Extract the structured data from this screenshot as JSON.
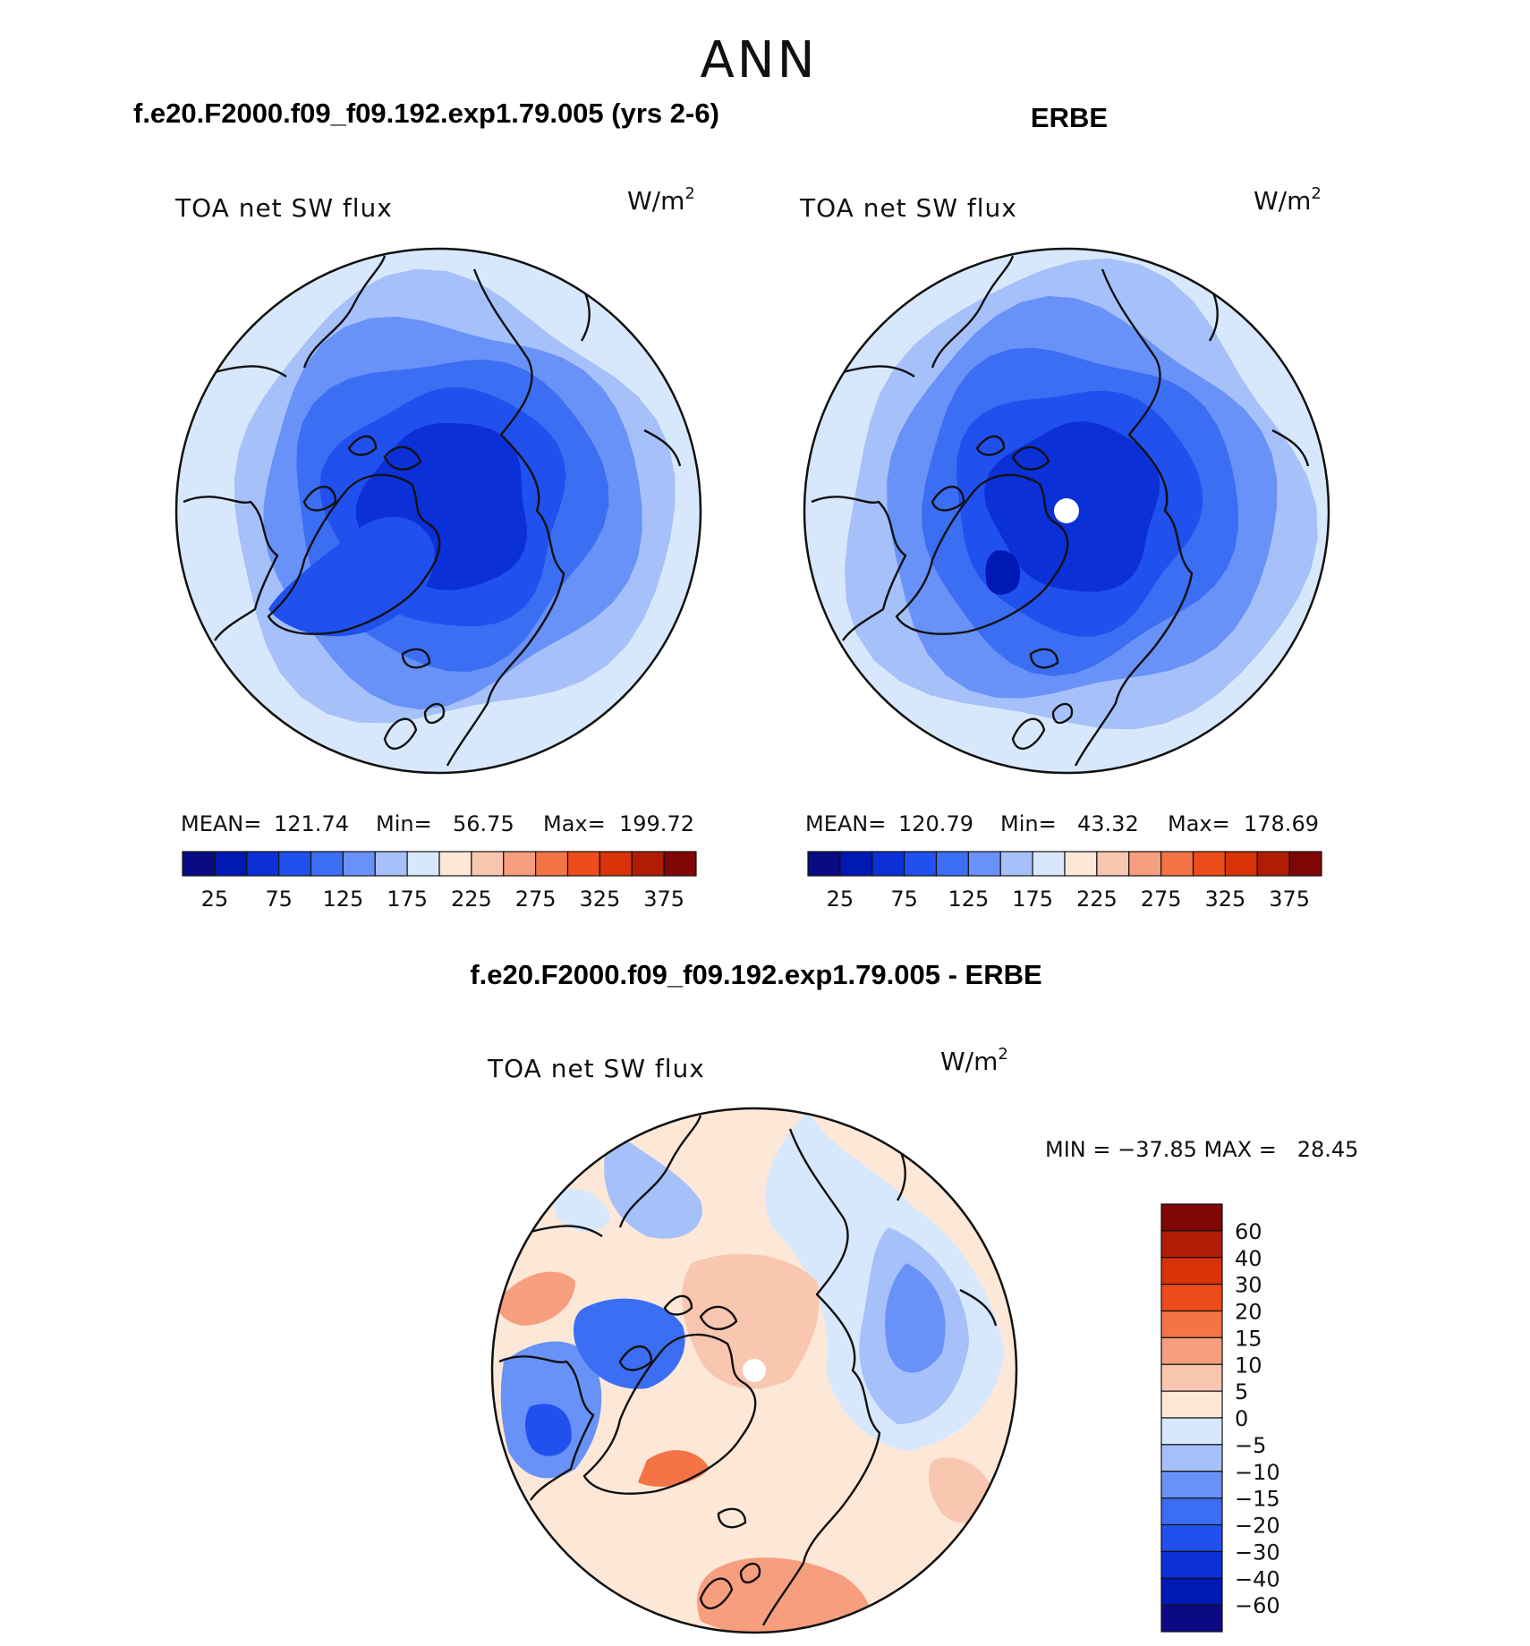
{
  "figure": {
    "season": "ANN",
    "left_title": "f.e20.F2000.f09_f09.192.exp1.79.005 (yrs 2-6)",
    "right_title": "ERBE",
    "diff_title": "f.e20.F2000.f09_f09.192.exp1.79.005 - ERBE"
  },
  "chart_data": [
    {
      "type": "heatmap",
      "projection": "north-polar-stereographic",
      "title": "f.e20.F2000.f09_f09.192.exp1.79.005 (yrs 2-6)",
      "variable": "TOA net SW flux",
      "units": "W/m",
      "units_exp": "2",
      "stats": {
        "mean_label": "MEAN=",
        "mean": "121.74",
        "min_label": "Min=",
        "min": "56.75",
        "max_label": "Max=",
        "max": "199.72"
      },
      "levels": [
        "25",
        "75",
        "125",
        "175",
        "225",
        "275",
        "325",
        "375"
      ],
      "palette": [
        "#0a0a84",
        "#0018b4",
        "#0c30d8",
        "#2050ee",
        "#3c6ef4",
        "#6892f8",
        "#a6c0fa",
        "#d8e8fc",
        "#fde8d8",
        "#f9c6b0",
        "#f79e7e",
        "#f47446",
        "#ee4c1a",
        "#d83208",
        "#b01c04",
        "#800606"
      ],
      "rings": [
        {
          "value": 192,
          "color": "#d8e8fc"
        },
        {
          "value": 172,
          "color": "#a6c0fa"
        },
        {
          "value": 150,
          "color": "#6892f8"
        },
        {
          "value": 125,
          "color": "#3c6ef4"
        },
        {
          "value": 100,
          "color": "#2050ee"
        },
        {
          "value": 75,
          "color": "#0c30d8"
        }
      ]
    },
    {
      "type": "heatmap",
      "projection": "north-polar-stereographic",
      "title": "ERBE",
      "variable": "TOA net SW flux",
      "units": "W/m",
      "units_exp": "2",
      "stats": {
        "mean_label": "MEAN=",
        "mean": "120.79",
        "min_label": "Min=",
        "min": "43.32",
        "max_label": "Max=",
        "max": "178.69"
      },
      "levels": [
        "25",
        "75",
        "125",
        "175",
        "225",
        "275",
        "325",
        "375"
      ],
      "palette": [
        "#0a0a84",
        "#0018b4",
        "#0c30d8",
        "#2050ee",
        "#3c6ef4",
        "#6892f8",
        "#a6c0fa",
        "#d8e8fc",
        "#fde8d8",
        "#f9c6b0",
        "#f79e7e",
        "#f47446",
        "#ee4c1a",
        "#d83208",
        "#b01c04",
        "#800606"
      ],
      "rings": [
        {
          "value": 175,
          "color": "#a6c0fa"
        },
        {
          "value": 150,
          "color": "#6892f8"
        },
        {
          "value": 125,
          "color": "#3c6ef4"
        },
        {
          "value": 100,
          "color": "#2050ee"
        },
        {
          "value": 75,
          "color": "#0c30d8"
        }
      ]
    },
    {
      "type": "heatmap",
      "projection": "north-polar-stereographic",
      "title": "f.e20.F2000.f09_f09.192.exp1.79.005 - ERBE",
      "variable": "TOA net SW flux",
      "units": "W/m",
      "units_exp": "2",
      "stats": {
        "text": "MIN = −37.85 MAX =   28.45",
        "min": -37.85,
        "max": 28.45
      },
      "levels": [
        "60",
        "40",
        "30",
        "20",
        "15",
        "10",
        "5",
        "0",
        "−5",
        "−10",
        "−15",
        "−20",
        "−30",
        "−40",
        "−60"
      ],
      "palette": [
        "#800606",
        "#b01c04",
        "#d83208",
        "#ee4c1a",
        "#f47446",
        "#f79e7e",
        "#f9c6b0",
        "#fde8d8",
        "#d8e8fc",
        "#a6c0fa",
        "#6892f8",
        "#3c6ef4",
        "#2050ee",
        "#0c30d8",
        "#0018b4",
        "#0a0a84"
      ],
      "regions": [
        {
          "value": 3,
          "color": "#fde8d8"
        },
        {
          "value": -3,
          "color": "#d8e8fc"
        },
        {
          "value": 7,
          "color": "#f9c6b0"
        },
        {
          "value": -8,
          "color": "#a6c0fa"
        },
        {
          "value": -13,
          "color": "#6892f8"
        },
        {
          "value": -18,
          "color": "#3c6ef4"
        },
        {
          "value": 12,
          "color": "#f79e7e"
        },
        {
          "value": 17,
          "color": "#f47446"
        }
      ]
    }
  ]
}
